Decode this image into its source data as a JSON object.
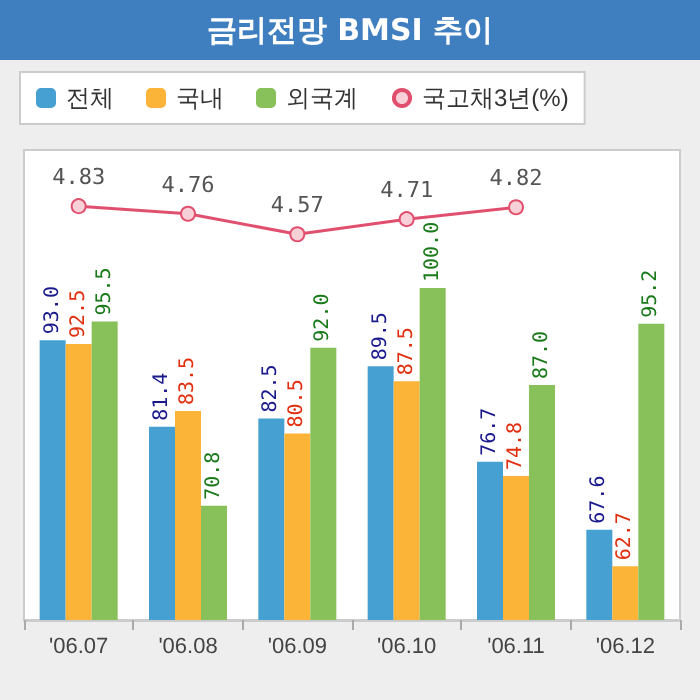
{
  "chart_data": {
    "type": "bar",
    "title": "금리전망 BMSI 추이",
    "categories": [
      "'06.07",
      "'06.08",
      "'06.09",
      "'06.10",
      "'06.11",
      "'06.12"
    ],
    "series": [
      {
        "name": "전체",
        "color": "#46a0d2",
        "values": [
          93.0,
          81.4,
          82.5,
          89.5,
          76.7,
          67.6
        ],
        "value_labels": [
          "93.0",
          "81.4",
          "82.5",
          "89.5",
          "76.7",
          "67.6"
        ]
      },
      {
        "name": "국내",
        "color": "#fbb437",
        "values": [
          92.5,
          83.5,
          80.5,
          87.5,
          74.8,
          62.7
        ],
        "value_labels": [
          "92.5",
          "83.5",
          "80.5",
          "87.5",
          "74.8",
          "62.7"
        ]
      },
      {
        "name": "외국계",
        "color": "#88c05a",
        "values": [
          95.5,
          70.8,
          92.0,
          100.0,
          87.0,
          95.2
        ],
        "value_labels": [
          "95.5",
          "70.8",
          "92.0",
          "100.0",
          "87.0",
          "95.2"
        ]
      },
      {
        "name": "국고채3년(%)",
        "type": "line",
        "axis": "y2",
        "color": "#e0506e",
        "values": [
          4.83,
          4.76,
          4.57,
          4.71,
          4.82,
          null
        ]
      }
    ],
    "ylim": [
      55.5,
      118.5
    ],
    "y2lim": [
      1,
      5.35
    ],
    "tick_labels": "x",
    "data_labels": true,
    "grid": false,
    "legend": "top",
    "marker": "circle"
  }
}
